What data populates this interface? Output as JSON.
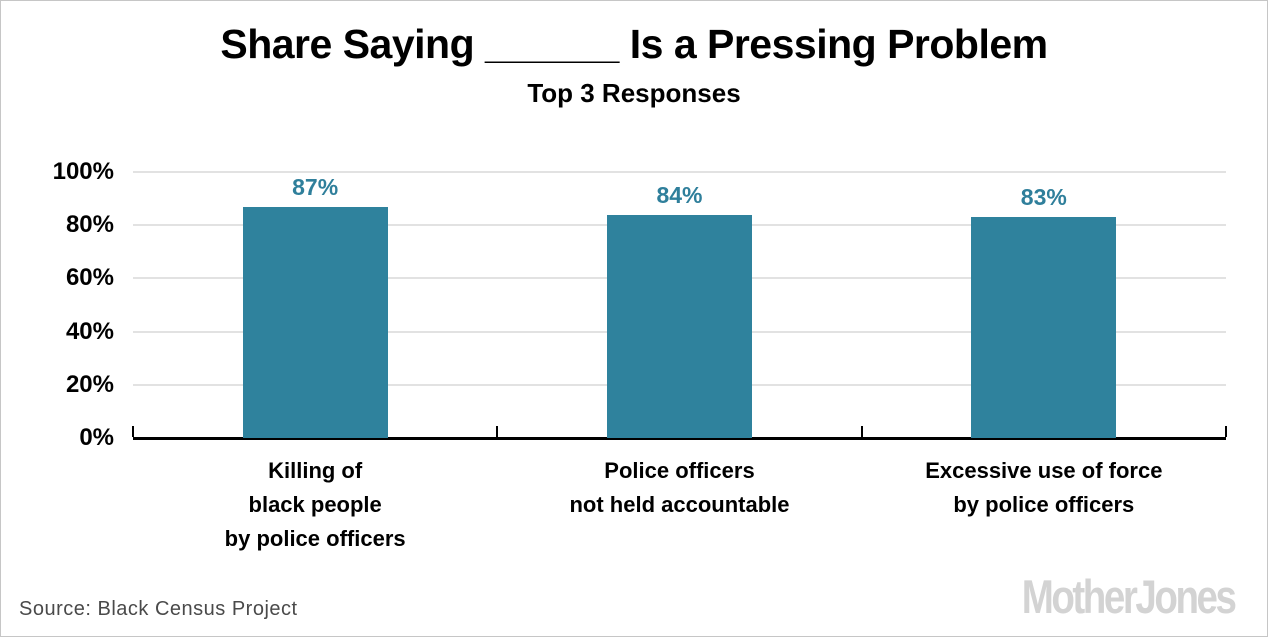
{
  "header": {
    "title": "Share Saying ______ Is a Pressing Problem",
    "subtitle": "Top 3 Responses"
  },
  "chart_data": {
    "type": "bar",
    "title": "Share Saying ______ Is a Pressing Problem",
    "subtitle": "Top 3 Responses",
    "categories": [
      "Killing of\nblack people\nby police officers",
      "Police officers\nnot held accountable",
      "Excessive use of force\nby police officers"
    ],
    "values": [
      87,
      84,
      83
    ],
    "value_labels": [
      "87%",
      "84%",
      "83%"
    ],
    "xlabel": "",
    "ylabel": "",
    "ylim": [
      0,
      100
    ],
    "yticks": [
      0,
      20,
      40,
      60,
      80,
      100
    ],
    "ytick_labels": [
      "0%",
      "20%",
      "40%",
      "60%",
      "80%",
      "100%"
    ],
    "grid": true,
    "legend": "none",
    "bar_color": "#2F829D",
    "value_label_color": "#2F7F9B",
    "gridline_color": "#e2e2e2",
    "axis_color": "#000000"
  },
  "footer": {
    "source": "Source: Black Census Project",
    "logo": "MotherJones"
  }
}
